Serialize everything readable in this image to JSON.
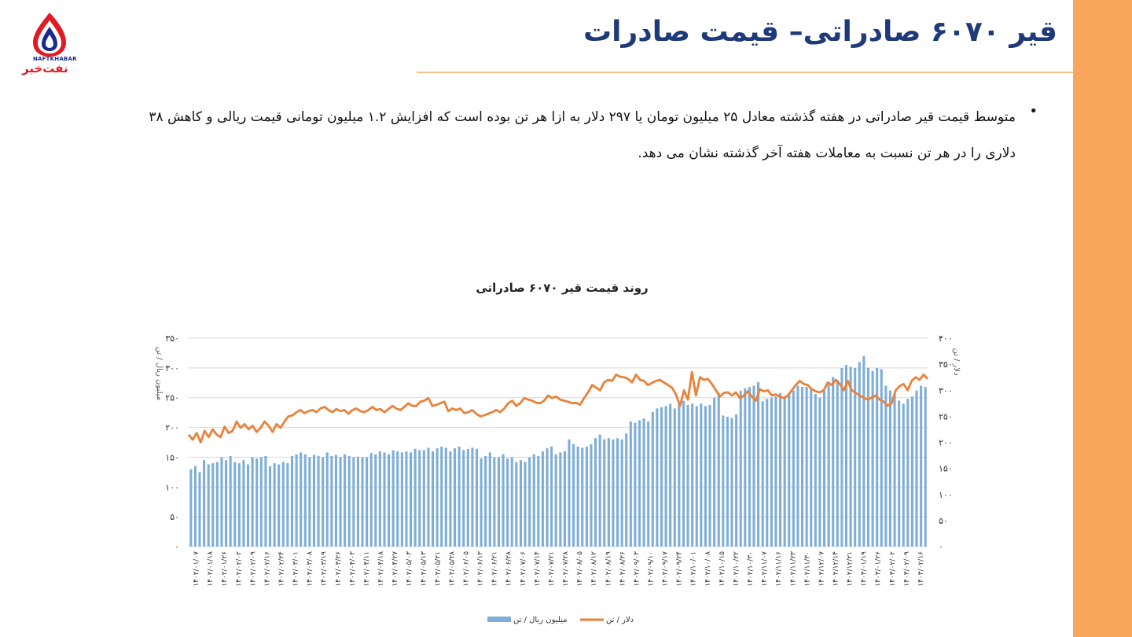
{
  "logo": {
    "latin": "NAFTKHABAR",
    "farsi": "نفت‌خبر"
  },
  "slide": {
    "title": "قیر ۶۰۷۰ صادراتی– قیمت صادرات",
    "bullet_text": "متوسط قیمت قیر صادراتی در هفته گذشته معادل ۲۵ میلیون تومان یا ۲۹۷ دلار به ازا هر تن بوده است که افزایش ۱.۲ میلیون تومانی قیمت ریالی و کاهش ۳۸ دلاری را در هر تن نسبت به معاملات هفته آخر گذشته نشان می دهد."
  },
  "colors": {
    "accent_bar": "#f9a65a",
    "title": "#1f3a7a",
    "bars": "#7eaed8",
    "line": "#e8823a",
    "grid": "#d9d9d9"
  },
  "chart_data": {
    "type": "bar+line",
    "title": "روند قیمت قیر ۶۰۷۰ صادراتی",
    "y_left": {
      "label": "میلیون ریال / تن",
      "ticks": [
        "۰",
        "۵۰",
        "۱۰۰",
        "۱۵۰",
        "۲۰۰",
        "۲۵۰",
        "۳۰۰",
        "۳۵۰"
      ],
      "range": [
        0,
        350
      ]
    },
    "y_right": {
      "label": "دلار / تن",
      "ticks": [
        "۰",
        "۵۰",
        "۱۰۰",
        "۱۵۰",
        "۲۰۰",
        "۲۵۰",
        "۳۰۰",
        "۳۵۰",
        "۴۰۰"
      ],
      "range": [
        0,
        400
      ]
    },
    "x_labels": [
      "۱۴۰۲/۰۱/۰۷",
      "۱۴۰۲/۰۱/۱۸",
      "۱۴۰۲/۰۱/۲۶",
      "۱۴۰۲/۰۲/۰۲",
      "۱۴۰۲/۰۲/۰۹",
      "۱۴۰۲/۰۲/۱۶",
      "۱۴۰۲/۰۲/۲۴",
      "۱۴۰۲/۰۳/۰۱",
      "۱۴۰۲/۰۳/۰۸",
      "۱۴۰۲/۰۳/۱۹",
      "۱۴۰۲/۰۳/۲۶",
      "۱۴۰۲/۰۴/۰۳",
      "۱۴۰۲/۰۴/۱۱",
      "۱۴۰۲/۰۴/۱۸",
      "۱۴۰۲/۰۴/۲۷",
      "۱۴۰۲/۰۵/۰۳",
      "۱۴۰۲/۰۵/۱۳",
      "۱۴۰۲/۰۵/۲۱",
      "۱۴۰۲/۰۵/۲۸",
      "۱۴۰۲/۰۶/۰۵",
      "۱۴۰۲/۰۶/۱۳",
      "۱۴۰۲/۰۶/۲۱",
      "۱۴۰۲/۰۶/۲۸",
      "۱۴۰۲/۰۷/۰۶",
      "۱۴۰۲/۰۷/۱۴",
      "۱۴۰۲/۰۷/۲۱",
      "۱۴۰۲/۰۷/۲۸",
      "۱۴۰۲/۰۸/۰۵",
      "۱۴۰۲/۰۸/۱۲",
      "۱۴۰۲/۰۸/۱۹",
      "۱۴۰۲/۰۸/۲۶",
      "۱۴۰۲/۰۹/۰۳",
      "۱۴۰۲/۰۹/۱۰",
      "۱۴۰۲/۰۹/۱۷",
      "۱۴۰۲/۰۹/۲۴",
      "۱۴۰۲/۱۰/۰۱",
      "۱۴۰۲/۱۰/۰۸",
      "۱۴۰۲/۱۰/۱۵",
      "۱۴۰۲/۱۰/۲۲",
      "۱۴۰۲/۱۰/۳۰",
      "۱۴۰۲/۱۱/۰۷",
      "۱۴۰۲/۱۱/۱۶",
      "۱۴۰۲/۱۱/۲۳",
      "۱۴۰۲/۱۱/۳۰",
      "۱۴۰۲/۱۲/۰۷",
      "۱۴۰۲/۱۲/۱۴",
      "۱۴۰۲/۱۲/۲۱",
      "۱۴۰۳/۰۱/۱۹",
      "۱۴۰۳/۰۱/۲۶",
      "۱۴۰۳/۰۲/۰۲",
      "۱۴۰۳/۰۲/۰۹",
      "۱۴۰۳/۰۲/۱۶"
    ],
    "series": [
      {
        "name": "میلیون ریال / تن",
        "kind": "bar",
        "axis": "left",
        "values": [
          130,
          135,
          125,
          145,
          138,
          140,
          142,
          150,
          145,
          152,
          142,
          140,
          145,
          138,
          150,
          148,
          150,
          152,
          135,
          140,
          138,
          142,
          140,
          152,
          155,
          158,
          155,
          150,
          154,
          152,
          150,
          158,
          152,
          154,
          150,
          155,
          152,
          150,
          151,
          150,
          150,
          157,
          155,
          160,
          158,
          155,
          162,
          160,
          158,
          160,
          158,
          164,
          162,
          162,
          166,
          160,
          165,
          168,
          166,
          160,
          165,
          168,
          162,
          164,
          166,
          164,
          148,
          152,
          158,
          150,
          150,
          155,
          148,
          150,
          142,
          145,
          142,
          150,
          155,
          152,
          160,
          165,
          168,
          155,
          158,
          160,
          180,
          172,
          168,
          166,
          168,
          172,
          182,
          188,
          180,
          182,
          180,
          182,
          180,
          190,
          210,
          208,
          212,
          215,
          210,
          226,
          232,
          234,
          236,
          240,
          232,
          240,
          245,
          238,
          240,
          236,
          240,
          236,
          238,
          250,
          258,
          220,
          218,
          216,
          222,
          262,
          266,
          268,
          270,
          276,
          244,
          248,
          250,
          252,
          258,
          250,
          255,
          262,
          270,
          268,
          268,
          264,
          256,
          250,
          262,
          272,
          285,
          280,
          300,
          305,
          302,
          300,
          310,
          320,
          300,
          295,
          300,
          298,
          270,
          262,
          258,
          245,
          240,
          248,
          252,
          262,
          270,
          268
        ]
      },
      {
        "name": "دلار / تن",
        "kind": "line",
        "axis": "right",
        "values": [
          215,
          205,
          218,
          200,
          222,
          210,
          225,
          215,
          210,
          230,
          218,
          222,
          240,
          228,
          235,
          225,
          232,
          220,
          228,
          240,
          232,
          220,
          235,
          228,
          240,
          250,
          252,
          258,
          262,
          256,
          260,
          262,
          258,
          265,
          268,
          262,
          258,
          264,
          260,
          262,
          255,
          262,
          265,
          260,
          258,
          262,
          268,
          262,
          264,
          258,
          264,
          270,
          265,
          262,
          268,
          275,
          270,
          270,
          278,
          280,
          285,
          270,
          272,
          275,
          278,
          260,
          265,
          262,
          265,
          256,
          258,
          262,
          255,
          250,
          252,
          255,
          258,
          262,
          258,
          265,
          275,
          280,
          270,
          275,
          285,
          282,
          280,
          276,
          275,
          280,
          290,
          285,
          288,
          282,
          280,
          278,
          275,
          276,
          272,
          285,
          296,
          310,
          305,
          300,
          315,
          320,
          318,
          330,
          326,
          325,
          322,
          315,
          330,
          320,
          318,
          310,
          314,
          318,
          320,
          315,
          310,
          305,
          292,
          270,
          300,
          282,
          335,
          290,
          325,
          320,
          322,
          312,
          300,
          288,
          295,
          296,
          290,
          296,
          285,
          290,
          298,
          288,
          280,
          302,
          298,
          300,
          290,
          292,
          288,
          285,
          290,
          300,
          310,
          318,
          312,
          310,
          302,
          298,
          296,
          300,
          315,
          310,
          320,
          312,
          300,
          318,
          300,
          295,
          290,
          286,
          282,
          286,
          290,
          282,
          278,
          270,
          275,
          300,
          308,
          312,
          300,
          318,
          325,
          320,
          330,
          322
        ]
      }
    ],
    "legend": {
      "position": "bottom",
      "items": [
        "میلیون ریال / تن",
        "دلار / تن"
      ]
    },
    "grid": true
  }
}
